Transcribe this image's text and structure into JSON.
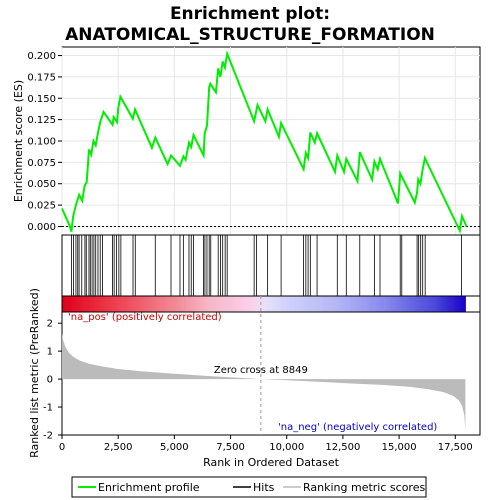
{
  "chart_data": {
    "type": "line",
    "title_line1": "Enrichment plot:",
    "title_line2": "ANATOMICAL_STRUCTURE_FORMATION",
    "es_panel": {
      "ylabel": "Enrichment score (ES)",
      "ylim": [
        -0.01,
        0.21
      ],
      "yticks": [
        0.0,
        0.025,
        0.05,
        0.075,
        0.1,
        0.125,
        0.15,
        0.175,
        0.2
      ],
      "ytick_labels": [
        "0.000",
        "0.025",
        "0.050",
        "0.075",
        "0.100",
        "0.125",
        "0.150",
        "0.175",
        "0.200"
      ],
      "line_color": "#00ee00",
      "points": [
        [
          0,
          0.021
        ],
        [
          350,
          0.0
        ],
        [
          420,
          -0.006
        ],
        [
          500,
          0.012
        ],
        [
          620,
          0.025
        ],
        [
          760,
          0.037
        ],
        [
          900,
          0.03
        ],
        [
          1000,
          0.047
        ],
        [
          1100,
          0.052
        ],
        [
          1200,
          0.09
        ],
        [
          1300,
          0.084
        ],
        [
          1400,
          0.1
        ],
        [
          1500,
          0.095
        ],
        [
          1600,
          0.11
        ],
        [
          1700,
          0.122
        ],
        [
          1850,
          0.134
        ],
        [
          2250,
          0.119
        ],
        [
          2300,
          0.128
        ],
        [
          2450,
          0.122
        ],
        [
          2500,
          0.138
        ],
        [
          2600,
          0.152
        ],
        [
          3150,
          0.126
        ],
        [
          3250,
          0.137
        ],
        [
          4000,
          0.092
        ],
        [
          4150,
          0.104
        ],
        [
          4700,
          0.073
        ],
        [
          4850,
          0.083
        ],
        [
          5250,
          0.071
        ],
        [
          5400,
          0.082
        ],
        [
          5500,
          0.078
        ],
        [
          5650,
          0.098
        ],
        [
          5750,
          0.093
        ],
        [
          5850,
          0.107
        ],
        [
          6300,
          0.083
        ],
        [
          6350,
          0.109
        ],
        [
          6450,
          0.118
        ],
        [
          6550,
          0.163
        ],
        [
          6600,
          0.167
        ],
        [
          6850,
          0.157
        ],
        [
          6950,
          0.185
        ],
        [
          7050,
          0.175
        ],
        [
          7150,
          0.193
        ],
        [
          7250,
          0.186
        ],
        [
          7350,
          0.202
        ],
        [
          8550,
          0.123
        ],
        [
          8700,
          0.142
        ],
        [
          9050,
          0.123
        ],
        [
          9150,
          0.137
        ],
        [
          9650,
          0.105
        ],
        [
          9750,
          0.121
        ],
        [
          10750,
          0.067
        ],
        [
          10850,
          0.086
        ],
        [
          10950,
          0.08
        ],
        [
          11050,
          0.11
        ],
        [
          11250,
          0.098
        ],
        [
          11350,
          0.109
        ],
        [
          12150,
          0.064
        ],
        [
          12250,
          0.083
        ],
        [
          12550,
          0.064
        ],
        [
          12650,
          0.079
        ],
        [
          13150,
          0.053
        ],
        [
          13250,
          0.087
        ],
        [
          13800,
          0.055
        ],
        [
          13900,
          0.076
        ],
        [
          14050,
          0.067
        ],
        [
          14150,
          0.079
        ],
        [
          14950,
          0.027
        ],
        [
          15050,
          0.062
        ],
        [
          15700,
          0.028
        ],
        [
          15800,
          0.04
        ],
        [
          15850,
          0.055
        ],
        [
          15950,
          0.05
        ],
        [
          16050,
          0.067
        ],
        [
          16150,
          0.08
        ],
        [
          17700,
          -0.005
        ],
        [
          17800,
          0.012
        ],
        [
          18000,
          0.0
        ]
      ]
    },
    "hits_panel": {
      "hit_positions": [
        420,
        510,
        620,
        700,
        760,
        880,
        1020,
        1080,
        1200,
        1260,
        1340,
        1420,
        1500,
        1600,
        1700,
        1800,
        2250,
        2320,
        2430,
        2530,
        2620,
        3160,
        3260,
        4150,
        4850,
        5250,
        5400,
        5650,
        5750,
        5850,
        6300,
        6360,
        6450,
        6550,
        6620,
        6950,
        7050,
        7150,
        7260,
        7350,
        8550,
        8650,
        9150,
        9750,
        10750,
        10850,
        10950,
        11050,
        11350,
        12250,
        12650,
        13250,
        13900,
        14150,
        15050,
        15120,
        15800,
        15870,
        15960,
        16050,
        16160,
        17780
      ],
      "gradient_stops": [
        {
          "offset": 0.0,
          "color": "#e0001a"
        },
        {
          "offset": 0.12,
          "color": "#ee3a4a"
        },
        {
          "offset": 0.28,
          "color": "#f28a96"
        },
        {
          "offset": 0.36,
          "color": "#f6b6c6"
        },
        {
          "offset": 0.47,
          "color": "#fbd0ec"
        },
        {
          "offset": 0.5,
          "color": "#e8e0f8"
        },
        {
          "offset": 0.55,
          "color": "#d2d4fb"
        },
        {
          "offset": 0.68,
          "color": "#b4b6f6"
        },
        {
          "offset": 0.8,
          "color": "#8888ee"
        },
        {
          "offset": 0.92,
          "color": "#4b4bdc"
        },
        {
          "offset": 1.0,
          "color": "#1a00c8"
        }
      ]
    },
    "metric_panel": {
      "ylabel": "Ranked list metric (PreRanked)",
      "xlabel": "Rank in Ordered Dataset",
      "ylim": [
        -2,
        2.4
      ],
      "yticks": [
        -2,
        -1,
        0,
        1,
        2
      ],
      "ytick_labels": [
        "-2",
        "-1",
        "0",
        "1",
        "2"
      ],
      "xlim": [
        0,
        18600
      ],
      "xticks": [
        0,
        2500,
        5000,
        7500,
        10000,
        12500,
        15000,
        17500
      ],
      "xtick_labels": [
        "0",
        "2,500",
        "5,000",
        "7,500",
        "10,000",
        "12,500",
        "15,000",
        "17,500"
      ],
      "metric_points": [
        [
          0,
          1.62
        ],
        [
          50,
          1.4
        ],
        [
          150,
          1.15
        ],
        [
          300,
          0.95
        ],
        [
          500,
          0.8
        ],
        [
          800,
          0.66
        ],
        [
          1200,
          0.55
        ],
        [
          1800,
          0.45
        ],
        [
          2500,
          0.36
        ],
        [
          3500,
          0.28
        ],
        [
          5000,
          0.19
        ],
        [
          6500,
          0.11
        ],
        [
          8000,
          0.04
        ],
        [
          8849,
          0.0
        ],
        [
          10000,
          -0.04
        ],
        [
          11500,
          -0.1
        ],
        [
          13000,
          -0.16
        ],
        [
          14500,
          -0.22
        ],
        [
          15500,
          -0.28
        ],
        [
          16300,
          -0.36
        ],
        [
          17000,
          -0.47
        ],
        [
          17400,
          -0.6
        ],
        [
          17650,
          -0.75
        ],
        [
          17800,
          -0.95
        ],
        [
          17900,
          -1.3
        ],
        [
          17950,
          -1.85
        ]
      ],
      "zero_cross_label": "Zero cross at 8849",
      "zero_cross": 8849,
      "na_pos_label": "'na_pos' (positively correlated)",
      "na_neg_label": "'na_neg' (negatively correlated)",
      "na_pos_color": "#cc0000",
      "na_neg_color": "#0000cc"
    },
    "legend": [
      {
        "label": "Enrichment profile",
        "color": "#00ee00"
      },
      {
        "label": "Hits",
        "color": "#000000"
      },
      {
        "label": "Ranking metric scores",
        "color": "#bbbbbb"
      }
    ]
  }
}
